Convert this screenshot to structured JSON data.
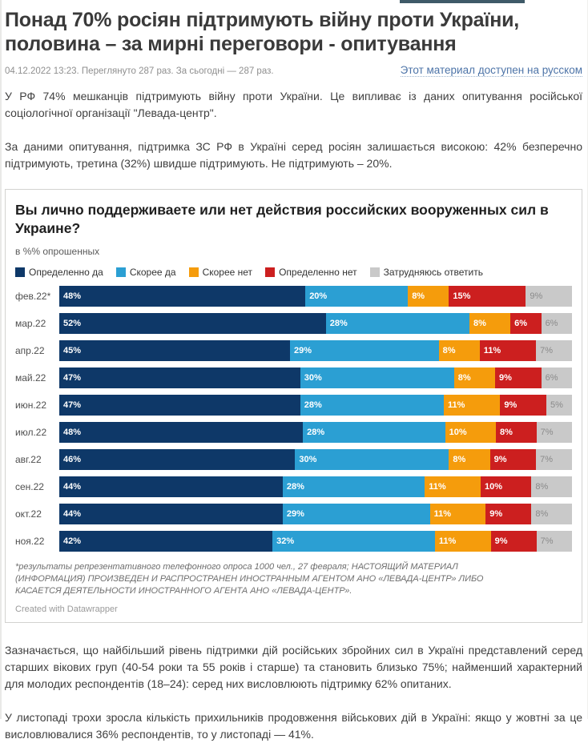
{
  "page": {
    "accent_link_color": "#4d74a8",
    "topbar_color": "#3f5a68"
  },
  "header": {
    "title": "Понад 70% росіян підтримують війну проти України, половина – за мирні переговори - опитування",
    "meta": "04.12.2022 13:23. Переглянуто 287 раз. За сьогодні — 287 раз.",
    "lang_link": "Этот материал доступен на русском"
  },
  "paragraphs": {
    "p1": "У РФ 74% мешканців підтримують війну проти України. Це випливає із даних опитування російської соціологічної організації \"Левада-центр\".",
    "p2": "За даними опитування, підтримка ЗС РФ в Україні серед росіян залишається високою: 42% безперечно підтримують, третина (32%) швидше підтримують. Не підтримують – 20%.",
    "p3": "Зазначається, що найбільший рівень підтримки дій російських збройних сил в Україні представлений серед старших вікових груп (40-54 роки та 55 років і старше) та становить близько 75%; найменший характерний для молодих респондентів (18–24): серед них висловлюють підтримку 62% опитаних.",
    "p4": "У листопаді трохи зросла кількість прихильників продовження військових дій в Україні: якщо у жовтні за це висловлювалися 36% респондентів, то у листопаді — 41%."
  },
  "chart": {
    "title": "Вы лично поддерживаете или нет действия российских вооруженных сил в Украине?",
    "subtitle": "в %% опрошенных",
    "footnote": "*результаты репрезентативного телефонного опроса 1000 чел., 27 февраля; НАСТОЯЩИЙ МАТЕРИАЛ (ИНФОРМАЦИЯ) ПРОИЗВЕДЕН И РАСПРОСТРАНЕН ИНОСТРАННЫМ АГЕНТОМ АНО «ЛЕВАДА-ЦЕНТР» ЛИБО КАСАЕТСЯ ДЕЯТЕЛЬНОСТИ ИНОСТРАННОГО АГЕНТА АНО «ЛЕВАДА-ЦЕНТР».",
    "credit": "Created with Datawrapper"
  },
  "chart_data": {
    "type": "bar",
    "orientation": "horizontal",
    "stacked": true,
    "unit": "%",
    "xlim": [
      0,
      100
    ],
    "grid": false,
    "legend_position": "top",
    "title": "Вы лично поддерживаете или нет действия российских вооруженных сил в Украине?",
    "subtitle": "в %% опрошенных",
    "categories": [
      "фев.22*",
      "мар.22",
      "апр.22",
      "май.22",
      "июн.22",
      "июл.22",
      "авг.22",
      "сен.22",
      "окт.22",
      "ноя.22"
    ],
    "series": [
      {
        "name": "Определенно да",
        "color": "#0e3868",
        "label_color": "#ffffff",
        "values": [
          48,
          52,
          45,
          47,
          47,
          48,
          46,
          44,
          44,
          42
        ]
      },
      {
        "name": "Скорее да",
        "color": "#2b9fd3",
        "label_color": "#ffffff",
        "values": [
          20,
          28,
          29,
          30,
          28,
          28,
          30,
          28,
          29,
          32
        ]
      },
      {
        "name": "Скорее нет",
        "color": "#f59c0c",
        "label_color": "#ffffff",
        "values": [
          8,
          8,
          8,
          8,
          11,
          10,
          8,
          11,
          11,
          11
        ]
      },
      {
        "name": "Определенно нет",
        "color": "#cc1f1f",
        "label_color": "#ffffff",
        "values": [
          15,
          6,
          11,
          9,
          9,
          8,
          9,
          10,
          9,
          9
        ]
      },
      {
        "name": "Затрудняюсь ответить",
        "color": "#c9c9c9",
        "label_color": "#8a8a8a",
        "values": [
          9,
          6,
          7,
          6,
          5,
          7,
          7,
          8,
          8,
          7
        ]
      }
    ]
  }
}
